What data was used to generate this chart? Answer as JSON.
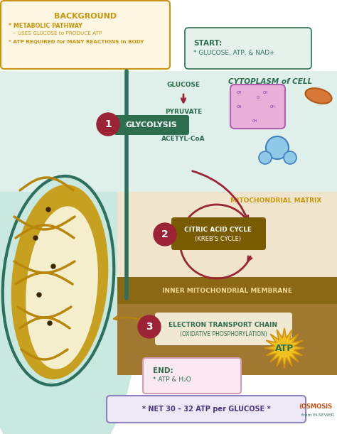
{
  "bg_color": "#ffffff",
  "top_bg": "#fdf6e3",
  "cytoplasm_bg": "#dff0ea",
  "mito_matrix_bg": "#f0e4cc",
  "inner_membrane_bg": "#8b6914",
  "net_box_bg": "#ede8f5",
  "start_box_bg": "#e4f2eb",
  "background_title": "BACKGROUND",
  "background_lines": [
    "* METABOLIC PATHWAY",
    "  ~ USES GLUCOSE to PRODUCE ATP",
    "* ATP REQUIRED for MANY REACTIONS in BODY"
  ],
  "start_title": "START:",
  "start_content": "* GLUCOSE, ATP, & NAD+",
  "step1_label": "1",
  "step1_text": "GLYCOLYSIS",
  "cytoplasm_label": "CYTOPLASM of CELL",
  "glucose_label": "GLUCOSE",
  "pyruvate_label": "PYRUVATE",
  "acetyl_label": "ACETYL-CoA",
  "mito_matrix_label": "MITOCHONDRIAL MATRIX",
  "step2_label": "2",
  "step2_text1": "CITRIC ACID CYCLE",
  "step2_text2": "(KREB'S CYCLE)",
  "inner_membrane_label": "INNER MITOCHONDRIAL MEMBRANE",
  "step3_label": "3",
  "step3_text1": "ELECTRON TRANSPORT CHAIN",
  "step3_text2": "(OXIDATIVE PHOSPHORYLATION)",
  "end_title": "END:",
  "end_content": "* ATP & H₂O",
  "atp_label": "ATP",
  "net_text": "* NET 30 – 32 ATP per GLUCOSE *",
  "osmosis_text": "(OSMOSIS",
  "elsevier_text": "from ELSEVIER",
  "color_gold": "#c8960c",
  "color_dark_green": "#2d6e4e",
  "color_teal_line": "#2d7060",
  "color_dark_red": "#9b2335",
  "color_brown_box": "#7a5c00",
  "color_purple": "#4a3580",
  "color_inner_text": "#f0d890",
  "color_orange_osmosis": "#c85010",
  "mito_outer_color": "#b8870a",
  "mito_fill": "#c8a020",
  "mito_inner_fill": "#f5eecc",
  "teal_bg": "#c8e8e0"
}
